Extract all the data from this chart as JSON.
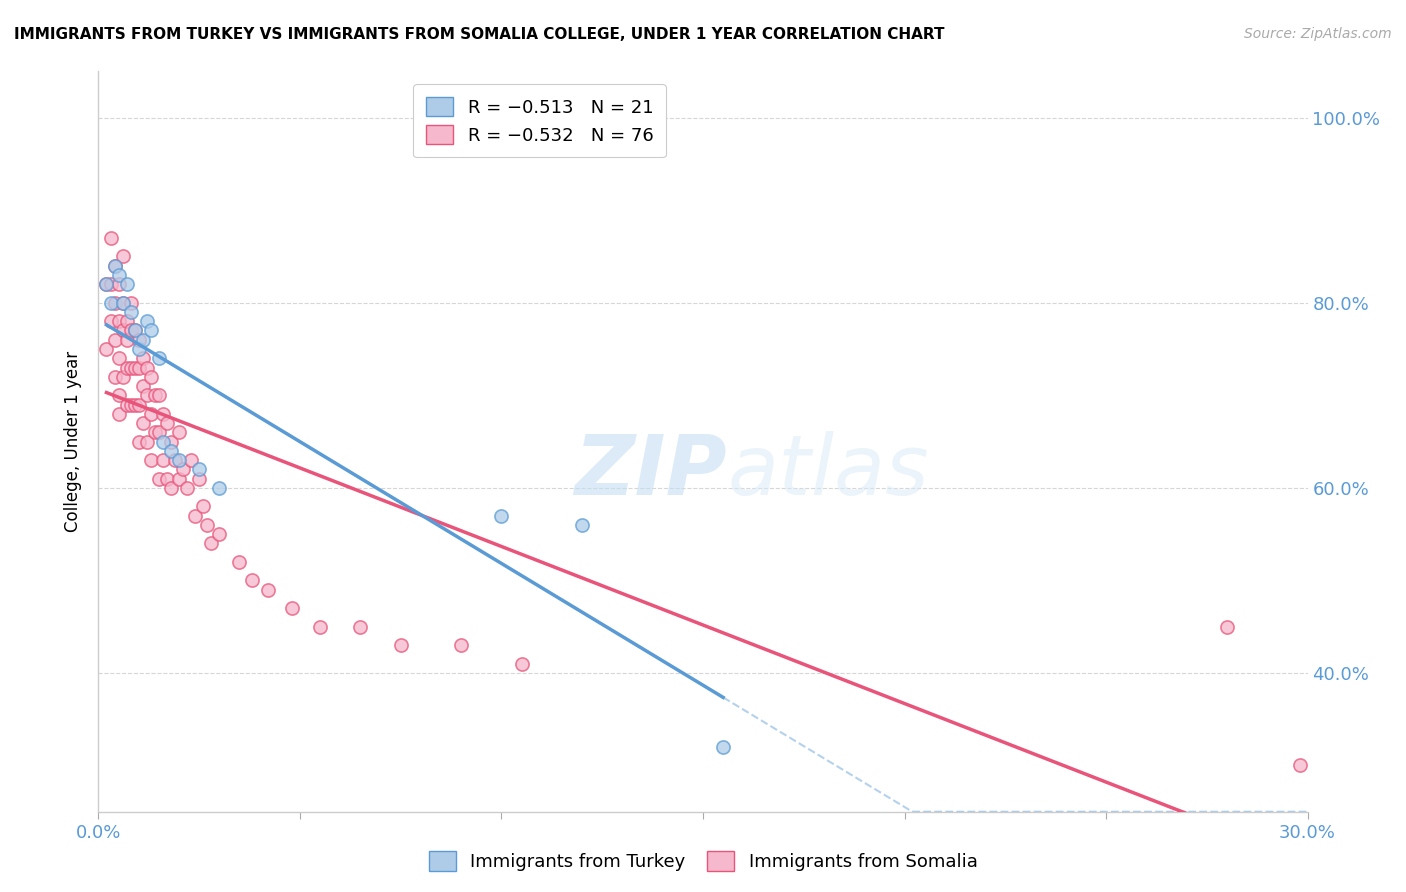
{
  "title": "IMMIGRANTS FROM TURKEY VS IMMIGRANTS FROM SOMALIA COLLEGE, UNDER 1 YEAR CORRELATION CHART",
  "source": "Source: ZipAtlas.com",
  "ylabel": "College, Under 1 year",
  "xlim": [
    0.0,
    0.3
  ],
  "ylim": [
    0.25,
    1.05
  ],
  "background_color": "#ffffff",
  "grid_color": "#cccccc",
  "turkey_color": "#aecce8",
  "turkey_line_color": "#5b9bd5",
  "turkey_edge_color": "#5b9bd5",
  "somalia_color": "#f5b8cc",
  "somalia_line_color": "#e8547a",
  "somalia_edge_color": "#e8547a",
  "turkey_R": -0.513,
  "turkey_N": 21,
  "somalia_R": -0.532,
  "somalia_N": 76,
  "turkey_x": [
    0.002,
    0.003,
    0.004,
    0.005,
    0.006,
    0.007,
    0.008,
    0.009,
    0.01,
    0.011,
    0.012,
    0.013,
    0.015,
    0.016,
    0.018,
    0.02,
    0.025,
    0.03,
    0.1,
    0.12,
    0.155
  ],
  "turkey_y": [
    0.82,
    0.8,
    0.84,
    0.83,
    0.8,
    0.82,
    0.79,
    0.77,
    0.75,
    0.76,
    0.78,
    0.77,
    0.74,
    0.65,
    0.64,
    0.63,
    0.62,
    0.6,
    0.57,
    0.56,
    0.32
  ],
  "somalia_x": [
    0.002,
    0.002,
    0.003,
    0.003,
    0.003,
    0.004,
    0.004,
    0.004,
    0.004,
    0.005,
    0.005,
    0.005,
    0.005,
    0.005,
    0.006,
    0.006,
    0.006,
    0.006,
    0.007,
    0.007,
    0.007,
    0.007,
    0.008,
    0.008,
    0.008,
    0.008,
    0.009,
    0.009,
    0.009,
    0.01,
    0.01,
    0.01,
    0.01,
    0.011,
    0.011,
    0.011,
    0.012,
    0.012,
    0.012,
    0.013,
    0.013,
    0.013,
    0.014,
    0.014,
    0.015,
    0.015,
    0.015,
    0.016,
    0.016,
    0.017,
    0.017,
    0.018,
    0.018,
    0.019,
    0.02,
    0.02,
    0.021,
    0.022,
    0.023,
    0.024,
    0.025,
    0.026,
    0.027,
    0.028,
    0.03,
    0.035,
    0.038,
    0.042,
    0.048,
    0.055,
    0.065,
    0.075,
    0.09,
    0.105,
    0.28,
    0.298
  ],
  "somalia_y": [
    0.75,
    0.82,
    0.87,
    0.82,
    0.78,
    0.84,
    0.8,
    0.76,
    0.72,
    0.82,
    0.78,
    0.74,
    0.7,
    0.68,
    0.85,
    0.8,
    0.77,
    0.72,
    0.78,
    0.76,
    0.73,
    0.69,
    0.8,
    0.77,
    0.73,
    0.69,
    0.77,
    0.73,
    0.69,
    0.76,
    0.73,
    0.69,
    0.65,
    0.74,
    0.71,
    0.67,
    0.73,
    0.7,
    0.65,
    0.72,
    0.68,
    0.63,
    0.7,
    0.66,
    0.7,
    0.66,
    0.61,
    0.68,
    0.63,
    0.67,
    0.61,
    0.65,
    0.6,
    0.63,
    0.66,
    0.61,
    0.62,
    0.6,
    0.63,
    0.57,
    0.61,
    0.58,
    0.56,
    0.54,
    0.55,
    0.52,
    0.5,
    0.49,
    0.47,
    0.45,
    0.45,
    0.43,
    0.43,
    0.41,
    0.45,
    0.3
  ],
  "watermark_zip": "ZIP",
  "watermark_atlas": "atlas",
  "legend_turkey_label": "R = −0.513   N = 21",
  "legend_somalia_label": "R = −0.532   N = 76",
  "right_yticks": [
    0.4,
    0.6,
    0.8,
    1.0
  ],
  "right_yticklabels": [
    "40.0%",
    "60.0%",
    "80.0%",
    "100.0%"
  ]
}
